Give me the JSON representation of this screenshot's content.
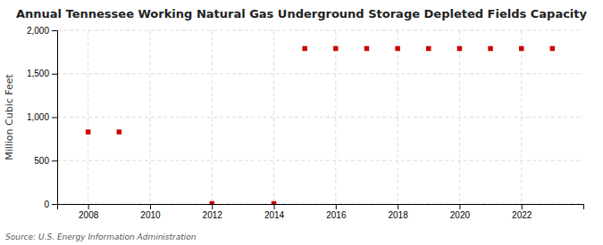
{
  "chart_data": {
    "type": "scatter",
    "title": "Annual Tennessee Working Natural Gas Underground Storage Depleted Fields Capacity",
    "ylabel": "Million Cubic Feet",
    "annotations": [
      "Source: U.S. Energy Information Administration"
    ],
    "x": [
      2008,
      2009,
      2012,
      2014,
      2015,
      2016,
      2017,
      2018,
      2019,
      2020,
      2021,
      2022,
      2023
    ],
    "values": [
      830,
      830,
      5,
      5,
      1790,
      1790,
      1790,
      1790,
      1790,
      1790,
      1790,
      1790,
      1790
    ],
    "color": "#cc0000",
    "marker": "square",
    "xlim": [
      2007.0,
      2024.0
    ],
    "xticks": [
      2008,
      2010,
      2012,
      2014,
      2016,
      2018,
      2020,
      2022
    ],
    "ylim": [
      0,
      2000
    ],
    "yticks": [
      0,
      500,
      {
        "value": 1000,
        "label": "1,000"
      },
      {
        "value": 1500,
        "label": "1,500"
      },
      {
        "value": 2000,
        "label": "2,000"
      }
    ],
    "grid": true
  }
}
